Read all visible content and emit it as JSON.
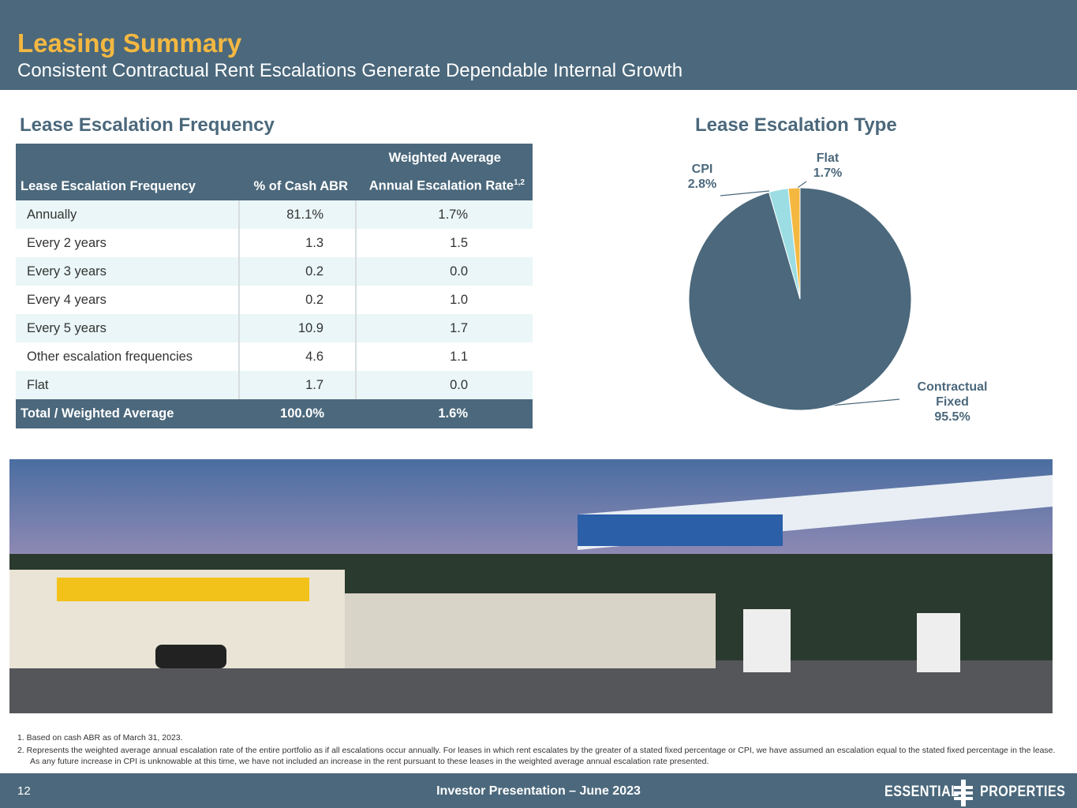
{
  "header": {
    "title": "Leasing Summary",
    "subtitle": "Consistent Contractual Rent Escalations Generate Dependable Internal Growth"
  },
  "table": {
    "title": "Lease Escalation Frequency",
    "header_top": "Weighted Average",
    "columns": [
      "Lease Escalation Frequency",
      "% of Cash ABR",
      "Annual Escalation Rate"
    ],
    "column_note": "1,2",
    "rows": [
      [
        "Annually",
        "81.1%",
        "1.7%"
      ],
      [
        "Every 2 years",
        "1.3",
        "1.5"
      ],
      [
        "Every 3 years",
        "0.2",
        "0.0"
      ],
      [
        "Every 4 years",
        "0.2",
        "1.0"
      ],
      [
        "Every 5 years",
        "10.9",
        "1.7"
      ],
      [
        "Other escalation frequencies",
        "4.6",
        "1.1"
      ],
      [
        "Flat",
        "1.7",
        "0.0"
      ]
    ],
    "total": [
      "Total / Weighted Average",
      "100.0%",
      "1.6%"
    ]
  },
  "chart_data": {
    "type": "pie",
    "title": "Lease Escalation Type",
    "categories": [
      "Contractual Fixed",
      "CPI",
      "Flat"
    ],
    "values": [
      95.5,
      2.8,
      1.7
    ],
    "value_labels": [
      "95.5%",
      "2.8%",
      "1.7%"
    ],
    "colors": [
      "#4b687c",
      "#9bdde3",
      "#f4b841"
    ]
  },
  "footnotes": [
    "1. Based on cash ABR as of March 31, 2023.",
    "2. Represents the weighted average annual escalation rate of the entire portfolio as if all escalations occur annually. For leases in which rent escalates by the greater of a stated fixed percentage or CPI, we have assumed an escalation equal to the stated fixed percentage in the lease. As any future increase in CPI is unknowable at this time, we have not included an increase in the rent pursuant to these leases in the weighted average annual escalation rate presented."
  ],
  "footer": {
    "page": "12",
    "event": "Investor Presentation – June 2023",
    "logo_left": "ESSENTIAL",
    "logo_right": "PROPERTIES"
  }
}
